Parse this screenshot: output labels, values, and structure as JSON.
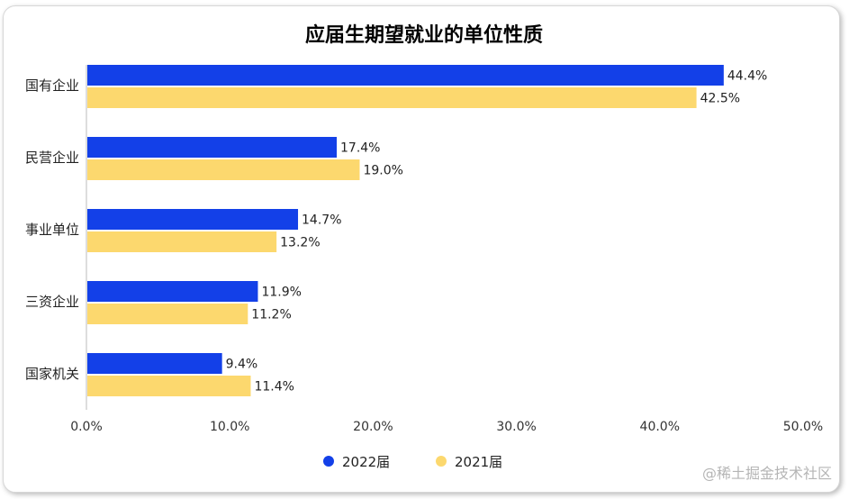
{
  "chart_data": {
    "type": "bar",
    "orientation": "horizontal",
    "title": "应届生期望就业的单位性质",
    "categories": [
      "国有企业",
      "民营企业",
      "事业单位",
      "三资企业",
      "国家机关"
    ],
    "series": [
      {
        "name": "2022届",
        "color": "#1340e8",
        "values": [
          44.4,
          17.4,
          14.7,
          11.9,
          9.4
        ]
      },
      {
        "name": "2021届",
        "color": "#fcd86e",
        "values": [
          42.5,
          19.0,
          13.2,
          11.2,
          11.4
        ]
      }
    ],
    "value_labels": [
      [
        "44.4%",
        "17.4%",
        "14.7%",
        "11.9%",
        "9.4%"
      ],
      [
        "42.5%",
        "19.0%",
        "13.2%",
        "11.2%",
        "11.4%"
      ]
    ],
    "xlim": [
      0,
      50
    ],
    "x_ticks": [
      0,
      10,
      20,
      30,
      40,
      50
    ],
    "x_tick_labels": [
      "0.0%",
      "10.0%",
      "20.0%",
      "30.0%",
      "40.0%",
      "50.0%"
    ],
    "xlabel": "",
    "ylabel": "",
    "grid": false,
    "legend_position": "bottom"
  },
  "watermark": "@稀土掘金技术社区"
}
